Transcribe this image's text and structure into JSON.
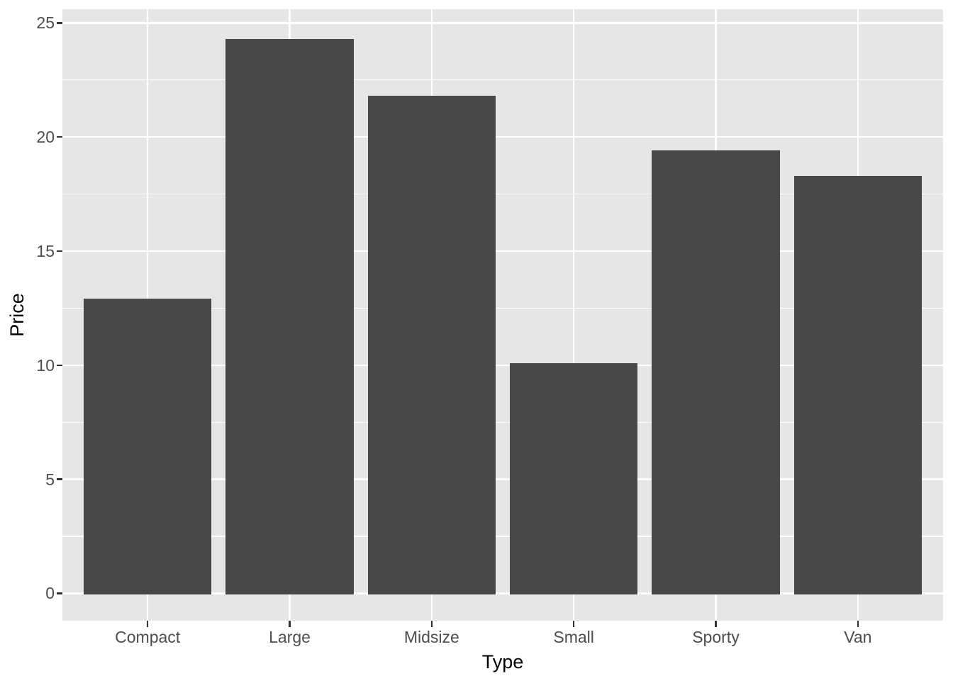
{
  "chart_data": {
    "type": "bar",
    "style": "ggplot2-theme-grey",
    "title": "",
    "xlabel": "Type",
    "ylabel": "Price",
    "categories": [
      "Compact",
      "Large",
      "Midsize",
      "Small",
      "Sporty",
      "Van"
    ],
    "values": [
      12.9,
      24.3,
      21.8,
      10.1,
      19.4,
      18.3
    ],
    "y_major_ticks": [
      0,
      5,
      10,
      15,
      20,
      25
    ],
    "y_minor_ticks": [
      2.5,
      7.5,
      12.5,
      17.5,
      22.5
    ],
    "ylim": [
      -1.2,
      25.6
    ],
    "grid": "horizontal major+minor, vertical major at each category",
    "legend": "none",
    "bar_width_fraction": 0.9
  },
  "colors": {
    "figure_background": "#FFFFFF",
    "panel_background": "#E6E6E6",
    "gridline": "#FFFFFF",
    "bar_fill": "#474747",
    "axis_text": "#4D4D4D",
    "axis_title": "#000000",
    "tick_mark": "#333333"
  }
}
